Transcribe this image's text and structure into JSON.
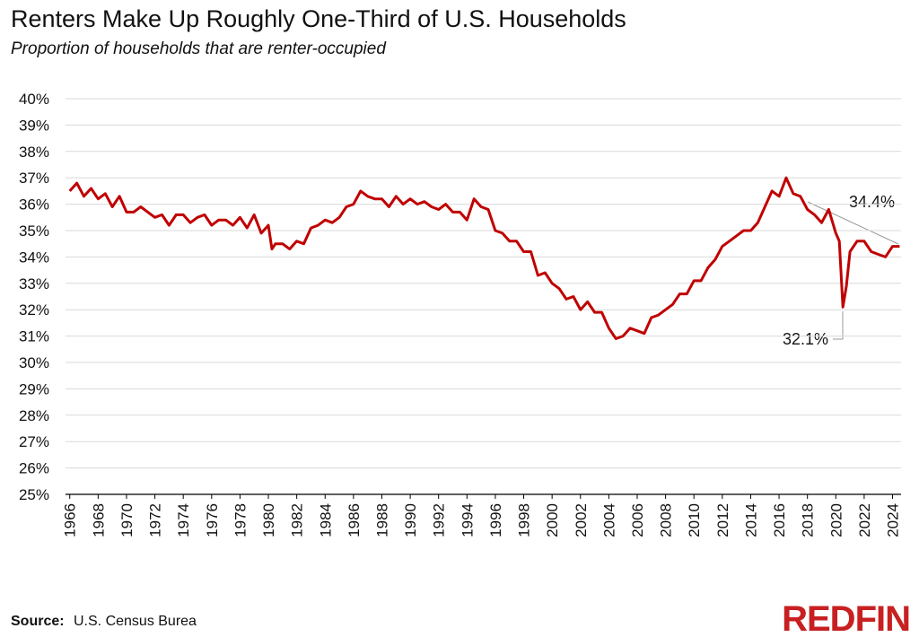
{
  "chart_data": {
    "type": "line",
    "title": "Renters Make Up Roughly One-Third of U.S. Households",
    "subtitle": "Proportion of households that are renter-occupied",
    "source_label": "Source:",
    "source_text": "U.S. Census Burea",
    "logo": "REDFIN",
    "annotations": [
      "34.4%",
      "32.1%"
    ],
    "grid": true,
    "xlim": [
      1965.7,
      2024.6
    ],
    "xticks": [
      1966,
      1968,
      1970,
      1972,
      1974,
      1976,
      1978,
      1980,
      1982,
      1984,
      1986,
      1988,
      1990,
      1992,
      1994,
      1996,
      1998,
      2000,
      2002,
      2004,
      2006,
      2008,
      2010,
      2012,
      2014,
      2016,
      2018,
      2020,
      2022,
      2024
    ],
    "ylim": [
      25,
      40
    ],
    "yticks": [
      {
        "value": 25,
        "label": "25%"
      },
      {
        "value": 26,
        "label": "26%"
      },
      {
        "value": 27,
        "label": "27%"
      },
      {
        "value": 28,
        "label": "28%"
      },
      {
        "value": 29,
        "label": "29%"
      },
      {
        "value": 30,
        "label": "30%"
      },
      {
        "value": 31,
        "label": "31%"
      },
      {
        "value": 32,
        "label": "32%"
      },
      {
        "value": 33,
        "label": "33%"
      },
      {
        "value": 34,
        "label": "34%"
      },
      {
        "value": 35,
        "label": "35%"
      },
      {
        "value": 36,
        "label": "36%"
      },
      {
        "value": 37,
        "label": "37%"
      },
      {
        "value": 38,
        "label": "38%"
      },
      {
        "value": 39,
        "label": "39%"
      },
      {
        "value": 40,
        "label": "40%"
      }
    ],
    "color": "#c00000",
    "x": [
      1966,
      1966.5,
      1967,
      1967.5,
      1968,
      1968.5,
      1969,
      1969.5,
      1970,
      1970.5,
      1971,
      1971.5,
      1972,
      1972.5,
      1973,
      1973.5,
      1974,
      1974.5,
      1975,
      1975.5,
      1976,
      1976.5,
      1977,
      1977.5,
      1978,
      1978.5,
      1979,
      1979.5,
      1980,
      1980.25,
      1980.5,
      1981,
      1981.5,
      1982,
      1982.5,
      1983,
      1983.5,
      1984,
      1984.5,
      1985,
      1985.5,
      1986,
      1986.5,
      1987,
      1987.5,
      1988,
      1988.5,
      1989,
      1989.5,
      1990,
      1990.5,
      1991,
      1991.5,
      1992,
      1992.5,
      1993,
      1993.5,
      1994,
      1994.5,
      1995,
      1995.5,
      1996,
      1996.5,
      1997,
      1997.5,
      1998,
      1998.5,
      1999,
      1999.5,
      2000,
      2000.5,
      2001,
      2001.5,
      2002,
      2002.5,
      2003,
      2003.5,
      2004,
      2004.5,
      2005,
      2005.5,
      2006,
      2006.5,
      2007,
      2007.5,
      2008,
      2008.5,
      2009,
      2009.5,
      2010,
      2010.5,
      2011,
      2011.5,
      2012,
      2012.5,
      2013,
      2013.5,
      2014,
      2014.5,
      2015,
      2015.5,
      2016,
      2016.5,
      2017,
      2017.5,
      2018,
      2018.5,
      2019,
      2019.5,
      2020,
      2020.25,
      2020.5,
      2020.75,
      2021,
      2021.5,
      2022,
      2022.5,
      2023,
      2023.5,
      2024,
      2024.5
    ],
    "values": [
      36.5,
      36.8,
      36.3,
      36.6,
      36.2,
      36.4,
      35.9,
      36.3,
      35.7,
      35.7,
      35.9,
      35.7,
      35.5,
      35.6,
      35.2,
      35.6,
      35.6,
      35.3,
      35.5,
      35.6,
      35.2,
      35.4,
      35.4,
      35.2,
      35.5,
      35.1,
      35.6,
      34.9,
      35.2,
      34.3,
      34.5,
      34.5,
      34.3,
      34.6,
      34.5,
      35.1,
      35.2,
      35.4,
      35.3,
      35.5,
      35.9,
      36.0,
      36.5,
      36.3,
      36.2,
      36.2,
      35.9,
      36.3,
      36.0,
      36.2,
      36.0,
      36.1,
      35.9,
      35.8,
      36.0,
      35.7,
      35.7,
      35.4,
      36.2,
      35.9,
      35.8,
      35.0,
      34.9,
      34.6,
      34.6,
      34.2,
      34.2,
      33.3,
      33.4,
      33.0,
      32.8,
      32.4,
      32.5,
      32.0,
      32.3,
      31.9,
      31.9,
      31.3,
      30.9,
      31.0,
      31.3,
      31.2,
      31.1,
      31.7,
      31.8,
      32.0,
      32.2,
      32.6,
      32.6,
      33.1,
      33.1,
      33.6,
      33.9,
      34.4,
      34.6,
      34.8,
      35.0,
      35.0,
      35.3,
      35.9,
      36.5,
      36.3,
      37.0,
      36.4,
      36.3,
      35.8,
      35.6,
      35.3,
      35.8,
      34.9,
      34.6,
      32.1,
      32.9,
      34.2,
      34.6,
      34.6,
      34.2,
      34.1,
      34.0,
      34.4,
      34.4
    ]
  }
}
